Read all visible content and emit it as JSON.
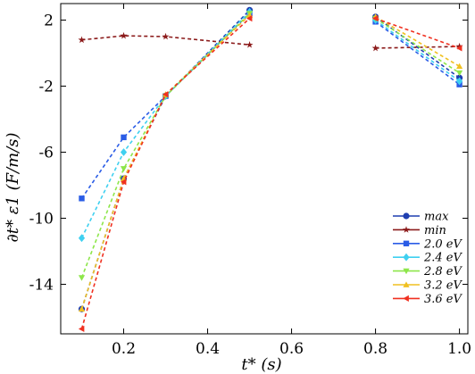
{
  "chart_data": {
    "type": "line",
    "xlabel": "t* (s)",
    "ylabel": "∂t* ε1 (F/m/s)",
    "xlim": [
      0.05,
      1.02
    ],
    "ylim": [
      -17,
      3
    ],
    "xticks": [
      0.2,
      0.4,
      0.6,
      0.8,
      1.0
    ],
    "xtick_labels": [
      "0.2",
      "0.4",
      "0.6",
      "0.8",
      "1.0"
    ],
    "yticks": [
      2,
      -2,
      -6,
      -10,
      -14
    ],
    "ytick_labels": [
      "2",
      "-2",
      "-6",
      "-10",
      "-14"
    ],
    "legend_position": "lower-right",
    "series": [
      {
        "name": "max",
        "color": "#1f3fb0",
        "marker": "circle",
        "segments": [
          [
            [
              0.1,
              -15.5
            ],
            [
              0.2,
              -7.6
            ],
            [
              0.3,
              -2.6
            ],
            [
              0.5,
              2.6
            ]
          ],
          [
            [
              0.8,
              2.2
            ],
            [
              1.0,
              -1.5
            ]
          ]
        ]
      },
      {
        "name": "min",
        "color": "#8b1a1a",
        "marker": "star",
        "segments": [
          [
            [
              0.1,
              0.8
            ],
            [
              0.2,
              1.05
            ],
            [
              0.3,
              1.0
            ],
            [
              0.5,
              0.5
            ]
          ],
          [
            [
              0.8,
              0.3
            ],
            [
              1.0,
              0.4
            ]
          ]
        ]
      },
      {
        "name": "2.0 eV",
        "color": "#2a5ce6",
        "marker": "square",
        "segments": [
          [
            [
              0.1,
              -8.8
            ],
            [
              0.2,
              -5.1
            ],
            [
              0.3,
              -2.6
            ],
            [
              0.5,
              2.4
            ]
          ],
          [
            [
              0.8,
              1.9
            ],
            [
              1.0,
              -1.9
            ]
          ]
        ]
      },
      {
        "name": "2.4 eV",
        "color": "#3fd0f0",
        "marker": "diamond",
        "segments": [
          [
            [
              0.1,
              -11.2
            ],
            [
              0.2,
              -6.0
            ],
            [
              0.3,
              -2.6
            ],
            [
              0.5,
              2.5
            ]
          ],
          [
            [
              0.8,
              2.0
            ],
            [
              1.0,
              -1.7
            ]
          ]
        ]
      },
      {
        "name": "2.8 eV",
        "color": "#8de64a",
        "marker": "triangle-down",
        "segments": [
          [
            [
              0.1,
              -13.6
            ],
            [
              0.2,
              -7.0
            ],
            [
              0.3,
              -2.6
            ],
            [
              0.5,
              2.4
            ]
          ],
          [
            [
              0.8,
              2.1
            ],
            [
              1.0,
              -1.2
            ]
          ]
        ]
      },
      {
        "name": "3.2 eV",
        "color": "#f0c020",
        "marker": "triangle-up",
        "segments": [
          [
            [
              0.1,
              -15.5
            ],
            [
              0.2,
              -7.6
            ],
            [
              0.3,
              -2.5
            ],
            [
              0.5,
              2.3
            ]
          ],
          [
            [
              0.8,
              2.2
            ],
            [
              1.0,
              -0.8
            ]
          ]
        ]
      },
      {
        "name": "3.6 eV",
        "color": "#f03020",
        "marker": "triangle-left",
        "segments": [
          [
            [
              0.1,
              -16.7
            ],
            [
              0.2,
              -7.8
            ],
            [
              0.3,
              -2.5
            ],
            [
              0.5,
              2.1
            ]
          ],
          [
            [
              0.8,
              2.1
            ],
            [
              1.0,
              0.3
            ]
          ]
        ]
      }
    ]
  }
}
